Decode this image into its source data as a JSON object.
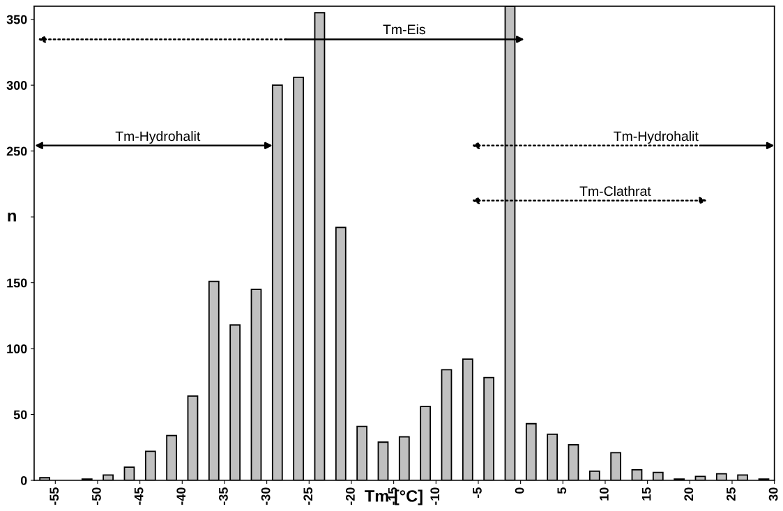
{
  "chart_data": {
    "type": "histogram",
    "xlabel": "Tm [°C]",
    "ylabel": "n",
    "bins": [
      -57.5,
      -55,
      -52.5,
      -50,
      -47.5,
      -45,
      -42.5,
      -40,
      -37.5,
      -35,
      -32.5,
      -30,
      -27.5,
      -25,
      -22.5,
      -20,
      -17.5,
      -15,
      -12.5,
      -10,
      -7.5,
      -5,
      -2.5,
      0,
      2.5,
      5,
      7.5,
      10,
      12.5,
      15,
      17.5,
      20,
      22.5,
      25,
      27.5,
      30
    ],
    "values": [
      2,
      0,
      1,
      4,
      10,
      22,
      34,
      64,
      151,
      118,
      145,
      300,
      306,
      355,
      192,
      41,
      29,
      33,
      56,
      84,
      92,
      78,
      360,
      43,
      35,
      27,
      7,
      21,
      8,
      6,
      1,
      3,
      5,
      4,
      1
    ],
    "color": "#c0c0c0",
    "xlim": [
      -57.5,
      30
    ],
    "xticks": [
      -55,
      -50,
      -45,
      -40,
      -35,
      -30,
      -25,
      -20,
      -15,
      -10,
      -5,
      0,
      5,
      10,
      15,
      20,
      25,
      30
    ],
    "ylim": [
      0,
      360
    ],
    "yticks": [
      0,
      50,
      100,
      150,
      {
        "value": 200,
        "label": null
      },
      250,
      300,
      350
    ],
    "grid": false,
    "annotations": [
      "Tm-Eis",
      "Tm-Hydrohalit",
      "Tm-Hydrohalit",
      "Tm-Clathrat"
    ]
  }
}
